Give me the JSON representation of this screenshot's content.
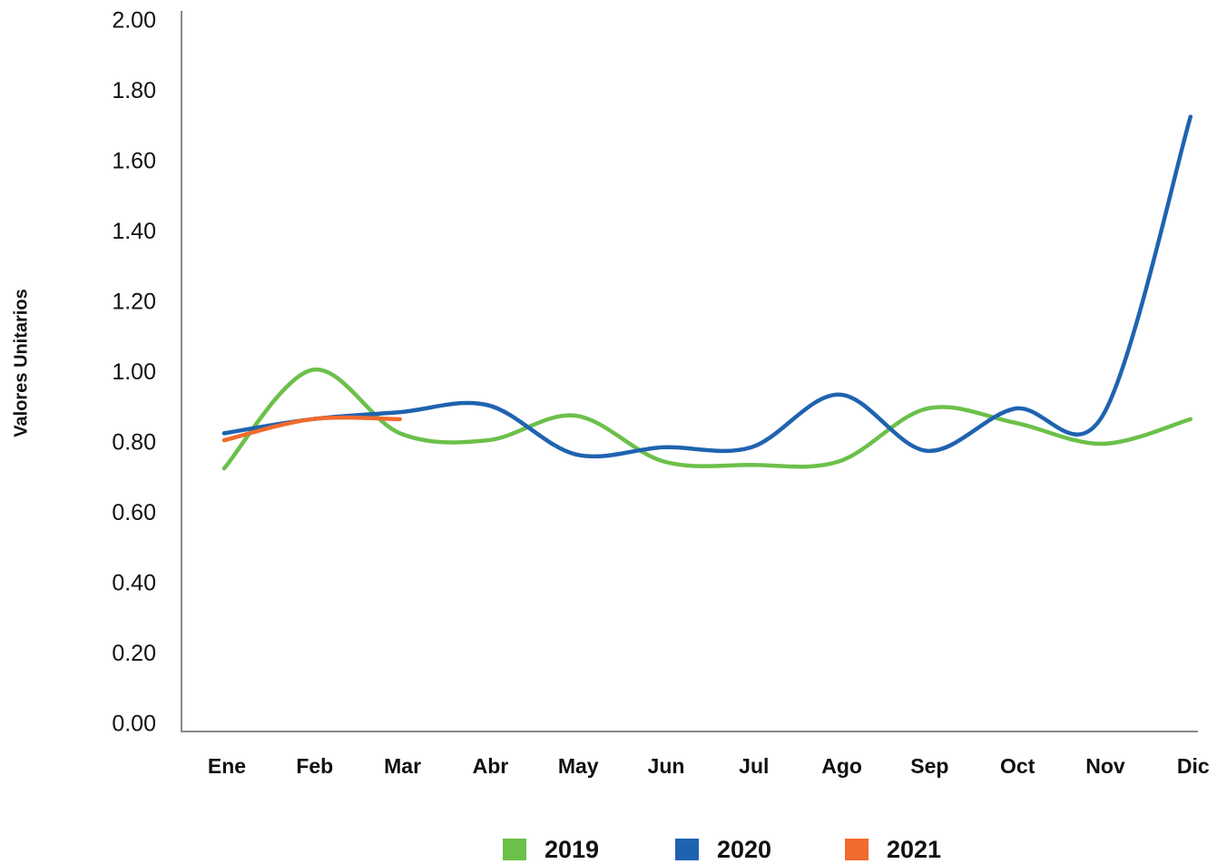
{
  "chart_data": {
    "type": "line",
    "y_label": "Valores Unitarios",
    "categories": [
      "Ene",
      "Feb",
      "Mar",
      "Abr",
      "May",
      "Jun",
      "Jul",
      "Ago",
      "Sep",
      "Oct",
      "Nov",
      "Dic"
    ],
    "series": [
      {
        "name": "2019",
        "color": "#6cc04a",
        "values": [
          0.73,
          1.01,
          0.83,
          0.81,
          0.88,
          0.75,
          0.74,
          0.75,
          0.9,
          0.86,
          0.8,
          0.87
        ]
      },
      {
        "name": "2020",
        "color": "#1f63b0",
        "values": [
          0.83,
          0.87,
          0.89,
          0.91,
          0.77,
          0.79,
          0.79,
          0.94,
          0.78,
          0.9,
          0.88,
          1.73
        ]
      },
      {
        "name": "2021",
        "color": "#f26b2e",
        "values": [
          0.81,
          0.87,
          0.87,
          null,
          null,
          null,
          null,
          null,
          null,
          null,
          null,
          null
        ]
      }
    ],
    "ylim": [
      0,
      2
    ],
    "yticks": [
      {
        "value": 0,
        "label": "0.00"
      },
      {
        "value": 0.2,
        "label": "0.20"
      },
      {
        "value": 0.4,
        "label": "0.40"
      },
      {
        "value": 0.6,
        "label": "0.60"
      },
      {
        "value": 0.8,
        "label": "0.80"
      },
      {
        "value": 1,
        "label": "1.00"
      },
      {
        "value": 1.2,
        "label": "1.20"
      },
      {
        "value": 1.4,
        "label": "1.40"
      },
      {
        "value": 1.6,
        "label": "1.60"
      },
      {
        "value": 1.8,
        "label": "1.80"
      },
      {
        "value": 2,
        "label": "2.00"
      }
    ],
    "grid": false
  }
}
